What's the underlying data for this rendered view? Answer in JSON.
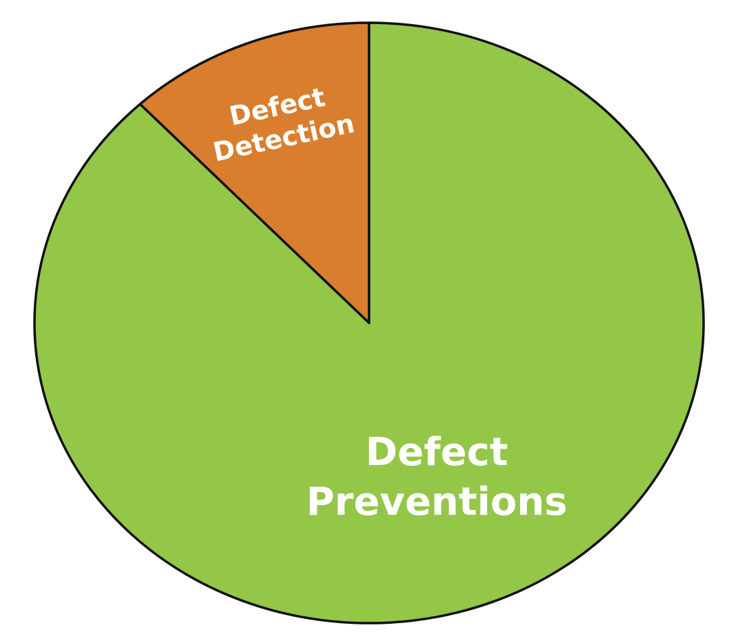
{
  "chart_data": {
    "type": "pie",
    "title": "",
    "start_angle_deg": -90,
    "direction": "counterclockwise",
    "legend": "none",
    "slices": [
      {
        "label_lines": [
          "Defect",
          "Detection"
        ],
        "value": 12,
        "color": "#d97e2e"
      },
      {
        "label_lines": [
          "Defect",
          "Preventions"
        ],
        "value": 88,
        "color": "#94c648"
      }
    ]
  }
}
